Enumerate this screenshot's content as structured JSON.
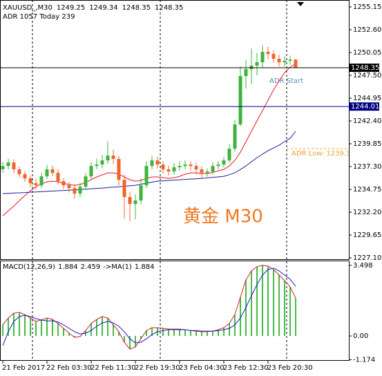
{
  "chart_data": [
    {
      "type": "candlestick",
      "symbol": "XAUUSD_,M30",
      "indicator_label": "ADR 1057  Today 239",
      "watermark": "黄金 M30",
      "annotation": "ADR Start",
      "categories": [
        "21 Feb 2017",
        null,
        null,
        null,
        null,
        null,
        null,
        null,
        "22 Feb 03:30",
        null,
        null,
        null,
        null,
        null,
        null,
        null,
        "22 Feb 11:30",
        null,
        null,
        null,
        null,
        null,
        null,
        null,
        "22 Feb 19:30",
        null,
        null,
        null,
        null,
        null,
        null,
        null,
        "23 Feb 04:30",
        null,
        null,
        null,
        null,
        null,
        null,
        null,
        "23 Feb 12:30",
        null,
        null,
        null,
        null,
        null,
        null,
        null,
        "23 Feb 20:30",
        null,
        null,
        null,
        null,
        null
      ],
      "open": [
        1237.0,
        1237.37,
        1237.76,
        1236.99,
        1236.45,
        1235.98,
        1235.44,
        1235.21,
        1236.21,
        1236.99,
        1236.6,
        1235.67,
        1235.21,
        1234.9,
        1234.28,
        1235.05,
        1236.21,
        1237.37,
        1237.53,
        1237.99,
        1238.53,
        1238.15,
        1235.83,
        1233.9,
        1233.12,
        1233.51,
        1235.21,
        1237.37,
        1237.99,
        1237.53,
        1236.99,
        1236.75,
        1237.22,
        1237.37,
        1237.53,
        1237.37,
        1236.99,
        1236.6,
        1236.75,
        1237.37,
        1237.53,
        1237.99,
        1239.3,
        1242.01,
        1247.42,
        1248.19,
        1248.58,
        1248.96,
        1250.12,
        1249.89,
        1249.35,
        1248.96,
        1249.12,
        1249.25
      ],
      "high": [
        1237.8,
        1238.2,
        1238.1,
        1237.3,
        1236.8,
        1236.3,
        1235.9,
        1236.6,
        1237.5,
        1237.4,
        1237.0,
        1236.0,
        1235.6,
        1235.3,
        1235.5,
        1236.6,
        1237.8,
        1238.2,
        1238.6,
        1240.1,
        1239.2,
        1238.5,
        1236.4,
        1234.5,
        1234.2,
        1236.0,
        1237.9,
        1238.5,
        1238.4,
        1237.9,
        1237.4,
        1237.7,
        1237.9,
        1238.0,
        1237.9,
        1237.7,
        1237.3,
        1237.1,
        1237.8,
        1237.9,
        1238.4,
        1239.8,
        1242.5,
        1248.5,
        1249.2,
        1250.5,
        1250.0,
        1250.9,
        1250.7,
        1250.3,
        1249.8,
        1249.6,
        1249.7,
        1249.34
      ],
      "low": [
        1236.6,
        1237.0,
        1236.6,
        1236.1,
        1235.6,
        1235.0,
        1234.7,
        1234.9,
        1235.9,
        1236.2,
        1235.3,
        1234.8,
        1234.4,
        1233.7,
        1233.9,
        1234.7,
        1235.9,
        1237.0,
        1237.1,
        1237.6,
        1237.6,
        1235.2,
        1231.5,
        1231.2,
        1231.4,
        1233.1,
        1234.9,
        1237.0,
        1237.1,
        1236.5,
        1236.3,
        1236.4,
        1236.8,
        1237.0,
        1236.9,
        1236.4,
        1236.0,
        1236.2,
        1236.4,
        1237.0,
        1237.2,
        1237.7,
        1239.0,
        1241.8,
        1246.0,
        1246.5,
        1247.5,
        1248.4,
        1249.3,
        1248.9,
        1248.5,
        1248.5,
        1248.7,
        1248.35
      ],
      "close": [
        1237.37,
        1237.76,
        1236.99,
        1236.45,
        1235.98,
        1235.44,
        1235.21,
        1236.21,
        1236.99,
        1236.6,
        1235.67,
        1235.21,
        1234.9,
        1234.28,
        1235.05,
        1236.21,
        1237.37,
        1237.53,
        1237.99,
        1238.53,
        1238.15,
        1235.83,
        1233.9,
        1233.12,
        1233.51,
        1235.21,
        1237.37,
        1237.99,
        1237.53,
        1236.99,
        1236.75,
        1237.22,
        1237.37,
        1237.53,
        1237.37,
        1236.99,
        1236.6,
        1236.75,
        1237.37,
        1237.53,
        1237.99,
        1239.3,
        1242.01,
        1247.42,
        1248.19,
        1248.58,
        1248.96,
        1250.12,
        1249.89,
        1249.35,
        1248.96,
        1249.12,
        1249.25,
        1248.35
      ],
      "up_color": "#3cb43c",
      "down_color": "#f0642a",
      "moving_averages": [
        {
          "color": "#e8141c",
          "values": [
            1231.81,
            1232.35,
            1232.89,
            1233.51,
            1234.05,
            1234.59,
            1235.05,
            1235.36,
            1235.6,
            1235.67,
            1235.6,
            1235.44,
            1235.29,
            1235.21,
            1235.29,
            1235.52,
            1235.83,
            1236.14,
            1236.37,
            1236.6,
            1236.6,
            1236.45,
            1236.14,
            1235.83,
            1235.67,
            1235.75,
            1235.98,
            1236.14,
            1236.14,
            1236.06,
            1235.98,
            1236.06,
            1236.21,
            1236.45,
            1236.6,
            1236.6,
            1236.52,
            1236.52,
            1236.68,
            1236.83,
            1236.99,
            1237.37,
            1237.99,
            1238.92,
            1240.08,
            1241.24,
            1242.4,
            1243.56,
            1244.71,
            1245.87,
            1246.88,
            1247.81,
            1248.42,
            1248.81
          ]
        },
        {
          "color": "#1a1a9c",
          "values": [
            1234.28,
            1234.31,
            1234.34,
            1234.37,
            1234.4,
            1234.44,
            1234.47,
            1234.5,
            1234.53,
            1234.57,
            1234.6,
            1234.63,
            1234.67,
            1234.7,
            1234.74,
            1234.78,
            1234.82,
            1234.86,
            1234.9,
            1234.95,
            1235.0,
            1235.05,
            1235.1,
            1235.16,
            1235.21,
            1235.33,
            1235.44,
            1235.56,
            1235.67,
            1235.71,
            1235.75,
            1235.79,
            1235.83,
            1235.87,
            1235.9,
            1235.94,
            1235.98,
            1236.04,
            1236.1,
            1236.15,
            1236.21,
            1236.4,
            1236.6,
            1236.98,
            1237.37,
            1237.84,
            1238.3,
            1238.69,
            1239.07,
            1239.38,
            1239.69,
            1240.08,
            1240.46,
            1241.24
          ]
        }
      ],
      "hlines": [
        {
          "value": 1248.35,
          "color": "#000000"
        },
        {
          "value": 1244.01,
          "color": "#000080"
        }
      ],
      "adr_low": {
        "label": "ADR Low: 1239.3",
        "value": 1239.3,
        "color": "#f0a030"
      },
      "ylim": [
        1226.95,
        1255.92
      ],
      "yticks": [
        1255.15,
        {
          "value": 1252.6,
          "label": "1252.60"
        },
        1250.05,
        {
          "value": 1247.5,
          "label": "1247.50"
        },
        1244.95,
        {
          "value": 1242.4,
          "label": "1242.40"
        },
        1239.85,
        {
          "value": 1237.3,
          "label": "1237.30"
        },
        1234.75,
        {
          "value": 1232.2,
          "label": "1232.20"
        },
        1229.65,
        {
          "value": 1227.1,
          "label": "1227.10"
        }
      ]
    },
    {
      "type": "macd",
      "label": "MACD(12,26,9)",
      "ma_label": "->MA(1)",
      "histogram": {
        "color": "#44bb44",
        "line_color": "#d02020",
        "values": [
          0.55,
          0.89,
          1.13,
          1.17,
          1.06,
          0.89,
          0.72,
          0.79,
          0.89,
          0.82,
          0.62,
          0.38,
          0.14,
          -0.07,
          -0.03,
          0.27,
          0.62,
          0.82,
          0.96,
          0.89,
          0.55,
          0.21,
          -0.31,
          -0.65,
          -0.55,
          -0.14,
          0.27,
          0.41,
          0.41,
          0.38,
          0.34,
          0.34,
          0.34,
          0.31,
          0.27,
          0.24,
          0.21,
          0.21,
          0.24,
          0.31,
          0.41,
          0.62,
          1.06,
          1.92,
          2.78,
          3.22,
          3.43,
          3.5,
          3.46,
          3.29,
          3.02,
          2.74,
          2.43,
          1.884
        ]
      },
      "signal": {
        "color": "#1a1acc",
        "values": [
          -0.48,
          0.21,
          0.72,
          0.96,
          1.03,
          0.96,
          0.86,
          0.79,
          0.75,
          0.75,
          0.69,
          0.55,
          0.38,
          0.21,
          0.1,
          0.14,
          0.27,
          0.48,
          0.65,
          0.72,
          0.65,
          0.48,
          0.21,
          -0.14,
          -0.34,
          -0.31,
          -0.14,
          0.07,
          0.21,
          0.27,
          0.31,
          0.31,
          0.31,
          0.31,
          0.27,
          0.27,
          0.24,
          0.24,
          0.24,
          0.27,
          0.31,
          0.38,
          0.55,
          0.89,
          1.41,
          1.99,
          2.54,
          3.02,
          3.29,
          3.36,
          3.22,
          3.02,
          2.81,
          2.459
        ]
      },
      "ylim": [
        -1.23,
        3.7
      ],
      "yticks": [
        3.498,
        {
          "value": 0,
          "label": "0.00"
        },
        -1.174
      ]
    }
  ]
}
